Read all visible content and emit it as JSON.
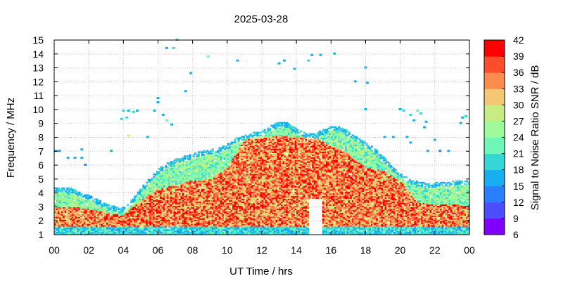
{
  "chart_data": {
    "type": "heatmap",
    "title": "2025-03-28",
    "xlabel": "UT Time / hrs",
    "ylabel": "Frequency / MHz",
    "colorbar_label": "Signal to Noise Ratio SNR / dB",
    "xlim": [
      0,
      24
    ],
    "ylim": [
      1,
      15
    ],
    "x_ticks": [
      "00",
      "02",
      "04",
      "06",
      "08",
      "10",
      "12",
      "14",
      "16",
      "18",
      "20",
      "22",
      "00"
    ],
    "y_ticks": [
      "1",
      "2",
      "3",
      "4",
      "5",
      "6",
      "7",
      "8",
      "9",
      "10",
      "11",
      "12",
      "13",
      "14",
      "15"
    ],
    "colorbar_ticks": [
      "6",
      "9",
      "12",
      "15",
      "18",
      "21",
      "24",
      "27",
      "30",
      "33",
      "36",
      "39",
      "42"
    ],
    "colorbar_range": [
      6,
      42
    ],
    "colorbar_colors": [
      "#7f00ff",
      "#4b4dff",
      "#2a7fff",
      "#17aef2",
      "#35d6d6",
      "#6cf6b8",
      "#9dfc99",
      "#c6ed82",
      "#f4c873",
      "#ff8c4c",
      "#ff4d2b",
      "#ff0000"
    ],
    "grid": true,
    "time_resolution_hrs": 0.1,
    "freq_resolution_mhz": 0.1,
    "upper_edge_mhz": {
      "t": [
        0,
        0.5,
        1,
        1.5,
        2,
        2.5,
        3,
        3.5,
        4,
        4.5,
        5,
        5.5,
        6,
        6.5,
        7,
        7.5,
        8,
        8.5,
        9,
        9.5,
        10,
        10.5,
        11,
        11.5,
        12,
        12.5,
        13,
        13.5,
        14,
        14.5,
        15,
        15.5,
        16,
        16.5,
        17,
        17.5,
        18,
        18.5,
        19,
        19.5,
        20,
        20.5,
        21,
        21.5,
        22,
        22.5,
        23,
        23.5,
        24
      ],
      "f": [
        4.4,
        4.4,
        4.3,
        4.0,
        3.8,
        3.5,
        3.2,
        3.0,
        2.9,
        3.5,
        4.3,
        5.0,
        5.7,
        6.1,
        6.4,
        6.6,
        6.8,
        7.0,
        7.1,
        7.2,
        7.5,
        7.9,
        8.1,
        8.3,
        8.4,
        8.8,
        9.1,
        9.0,
        8.6,
        8.3,
        8.2,
        8.5,
        8.8,
        8.8,
        8.4,
        8.0,
        7.6,
        7.2,
        6.6,
        6.0,
        5.4,
        5.0,
        4.8,
        4.7,
        4.7,
        4.8,
        4.8,
        4.9,
        4.9
      ]
    },
    "core_edge_mhz": {
      "t": [
        0,
        1,
        2,
        3,
        4,
        5,
        6,
        7,
        8,
        9,
        10,
        11,
        12,
        13,
        14,
        15,
        16,
        17,
        18,
        19,
        20,
        21,
        22,
        23,
        24
      ],
      "f": [
        3.0,
        3.0,
        2.9,
        2.6,
        2.4,
        3.5,
        4.3,
        4.6,
        4.9,
        5.0,
        5.8,
        7.8,
        8.0,
        8.1,
        8.0,
        8.0,
        7.4,
        6.9,
        5.8,
        5.6,
        4.9,
        3.4,
        3.2,
        3.2,
        3.1
      ]
    },
    "gap": {
      "t_start": 14.7,
      "t_end": 15.5,
      "f_max": 3.6
    },
    "scattered_points": [
      {
        "t": 0.1,
        "f": 7.0,
        "snr": 16
      },
      {
        "t": 0.3,
        "f": 7.0,
        "snr": 14
      },
      {
        "t": 0.8,
        "f": 6.5,
        "snr": 15
      },
      {
        "t": 1.2,
        "f": 6.5,
        "snr": 17
      },
      {
        "t": 1.6,
        "f": 7.1,
        "snr": 15
      },
      {
        "t": 1.6,
        "f": 6.5,
        "snr": 16
      },
      {
        "t": 1.8,
        "f": 6.0,
        "snr": 14
      },
      {
        "t": 3.3,
        "f": 7.0,
        "snr": 15
      },
      {
        "t": 3.9,
        "f": 9.3,
        "snr": 18
      },
      {
        "t": 4.0,
        "f": 9.9,
        "snr": 18
      },
      {
        "t": 4.3,
        "f": 9.9,
        "snr": 16
      },
      {
        "t": 4.6,
        "f": 9.8,
        "snr": 19
      },
      {
        "t": 4.8,
        "f": 9.9,
        "snr": 16
      },
      {
        "t": 4.3,
        "f": 8.1,
        "snr": 28
      },
      {
        "t": 4.2,
        "f": 9.4,
        "snr": 20
      },
      {
        "t": 5.4,
        "f": 8.0,
        "snr": 15
      },
      {
        "t": 6.0,
        "f": 10.8,
        "snr": 15
      },
      {
        "t": 6.0,
        "f": 10.5,
        "snr": 16
      },
      {
        "t": 6.3,
        "f": 9.6,
        "snr": 17
      },
      {
        "t": 6.5,
        "f": 9.2,
        "snr": 21
      },
      {
        "t": 6.8,
        "f": 8.9,
        "snr": 15
      },
      {
        "t": 5.8,
        "f": 9.9,
        "snr": 16
      },
      {
        "t": 6.5,
        "f": 14.4,
        "snr": 17
      },
      {
        "t": 6.9,
        "f": 14.4,
        "snr": 18
      },
      {
        "t": 7.1,
        "f": 15.0,
        "snr": 19
      },
      {
        "t": 7.6,
        "f": 11.3,
        "snr": 15
      },
      {
        "t": 7.9,
        "f": 12.6,
        "snr": 15
      },
      {
        "t": 8.9,
        "f": 13.8,
        "snr": 22
      },
      {
        "t": 10.6,
        "f": 13.5,
        "snr": 15
      },
      {
        "t": 13.0,
        "f": 13.3,
        "snr": 15
      },
      {
        "t": 13.3,
        "f": 13.5,
        "snr": 15
      },
      {
        "t": 13.9,
        "f": 12.9,
        "snr": 16
      },
      {
        "t": 14.7,
        "f": 13.5,
        "snr": 18
      },
      {
        "t": 14.9,
        "f": 13.9,
        "snr": 17
      },
      {
        "t": 15.4,
        "f": 13.9,
        "snr": 15
      },
      {
        "t": 16.2,
        "f": 14.0,
        "snr": 15
      },
      {
        "t": 17.4,
        "f": 12.0,
        "snr": 15
      },
      {
        "t": 18.0,
        "f": 13.0,
        "snr": 15
      },
      {
        "t": 18.1,
        "f": 11.9,
        "snr": 16
      },
      {
        "t": 18.0,
        "f": 10.0,
        "snr": 16
      },
      {
        "t": 20.0,
        "f": 10.0,
        "snr": 17
      },
      {
        "t": 20.2,
        "f": 9.9,
        "snr": 19
      },
      {
        "t": 20.6,
        "f": 9.6,
        "snr": 20
      },
      {
        "t": 21.0,
        "f": 9.9,
        "snr": 21
      },
      {
        "t": 21.2,
        "f": 9.7,
        "snr": 18
      },
      {
        "t": 20.8,
        "f": 9.2,
        "snr": 16
      },
      {
        "t": 21.4,
        "f": 8.7,
        "snr": 15
      },
      {
        "t": 21.5,
        "f": 9.1,
        "snr": 16
      },
      {
        "t": 22.0,
        "f": 7.8,
        "snr": 16
      },
      {
        "t": 21.6,
        "f": 7.0,
        "snr": 15
      },
      {
        "t": 22.3,
        "f": 7.0,
        "snr": 14
      },
      {
        "t": 22.8,
        "f": 7.0,
        "snr": 15
      },
      {
        "t": 20.4,
        "f": 8.0,
        "snr": 16
      },
      {
        "t": 20.6,
        "f": 7.6,
        "snr": 15
      },
      {
        "t": 19.1,
        "f": 8.0,
        "snr": 16
      },
      {
        "t": 19.6,
        "f": 8.0,
        "snr": 17
      },
      {
        "t": 23.6,
        "f": 9.4,
        "snr": 16
      },
      {
        "t": 23.8,
        "f": 9.5,
        "snr": 18
      },
      {
        "t": 23.5,
        "f": 9.0,
        "snr": 16
      },
      {
        "t": 2.1,
        "f": 3.7,
        "snr": 13
      }
    ]
  }
}
